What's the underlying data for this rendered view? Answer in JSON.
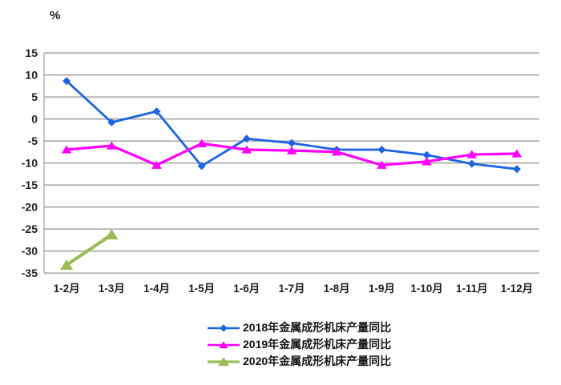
{
  "chart_data": {
    "type": "line",
    "title": "",
    "unit_label": "%",
    "xlabel": "",
    "ylabel": "%",
    "ylim": [
      -35,
      15
    ],
    "ytick_step": 5,
    "ytick_labels": [
      "15",
      "10",
      "5",
      "0",
      "-5",
      "-10",
      "-15",
      "-20",
      "-25",
      "-30",
      "-35"
    ],
    "grid": true,
    "legend_position": "bottom",
    "categories": [
      "1-2月",
      "1-3月",
      "1-4月",
      "1-5月",
      "1-6月",
      "1-7月",
      "1-8月",
      "1-9月",
      "1-10月",
      "1-11月",
      "1-12月"
    ],
    "series": [
      {
        "name": "2018年金属成形机床产量同比",
        "color": "#1c64e3",
        "marker": "diamond",
        "values": [
          8.6,
          -0.8,
          1.7,
          -10.7,
          -4.5,
          -5.5,
          -7.0,
          -7.0,
          -8.2,
          -10.2,
          -11.4
        ]
      },
      {
        "name": "2019年金属成形机床产量同比",
        "color": "#ff00ff",
        "marker": "triangle",
        "values": [
          -7.0,
          -6.1,
          -10.5,
          -5.6,
          -7.0,
          -7.2,
          -7.5,
          -10.5,
          -9.7,
          -8.1,
          -7.9
        ]
      },
      {
        "name": "2020年金属成形机床产量同比",
        "color": "#9bbb59",
        "marker": "triangle",
        "values": [
          -33.2,
          -26.3,
          null,
          null,
          null,
          null,
          null,
          null,
          null,
          null,
          null
        ]
      }
    ],
    "colors": {
      "gridline": "#a3a3a3",
      "gridline_shadow": "#dedede",
      "tick_text": "#1f1f1f"
    }
  }
}
